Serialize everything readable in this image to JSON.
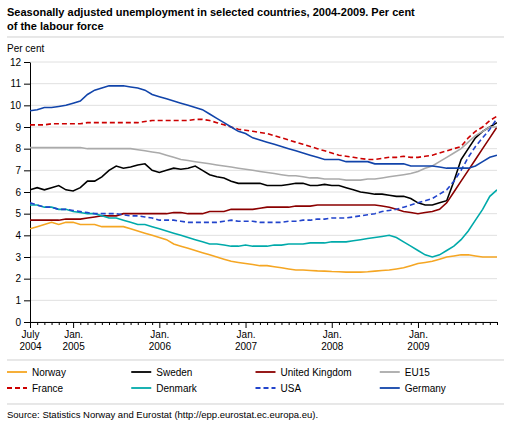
{
  "chart_data": {
    "type": "line",
    "title": "Seasonally adjusted unemployment in selected countries, 2004-2009. Per cent",
    "subtitle": "of the labour force",
    "ylabel": "Per cent",
    "source": "Source: Statistics Norway and Eurostat (http://epp.eurostat.ec.europa.eu).",
    "categories": [
      "July\n2004",
      null,
      null,
      null,
      null,
      null,
      "Jan.\n2005",
      null,
      null,
      null,
      null,
      null,
      null,
      null,
      null,
      null,
      null,
      null,
      "Jan.\n2006",
      null,
      null,
      null,
      null,
      null,
      null,
      null,
      null,
      null,
      null,
      null,
      "Jan.\n2007",
      null,
      null,
      null,
      null,
      null,
      null,
      null,
      null,
      null,
      null,
      null,
      "Jan.\n2008",
      null,
      null,
      null,
      null,
      null,
      null,
      null,
      null,
      null,
      null,
      null,
      "Jan.\n2009",
      null,
      null,
      null,
      null,
      null,
      null,
      null,
      null,
      null,
      null,
      null
    ],
    "ylim": [
      0,
      12
    ],
    "yticks": [
      0,
      1,
      2,
      3,
      4,
      5,
      6,
      7,
      8,
      9,
      10,
      11,
      12
    ],
    "grid": true,
    "legend": "bottom",
    "series": [
      {
        "name": "Norway",
        "color": "#f5a623",
        "line_style": "solid",
        "values": [
          4.3,
          4.4,
          4.5,
          4.6,
          4.5,
          4.6,
          4.6,
          4.5,
          4.5,
          4.5,
          4.4,
          4.4,
          4.4,
          4.4,
          4.3,
          4.2,
          4.1,
          4.0,
          3.9,
          3.8,
          3.6,
          3.5,
          3.4,
          3.3,
          3.2,
          3.1,
          3.0,
          2.9,
          2.8,
          2.75,
          2.7,
          2.65,
          2.6,
          2.6,
          2.55,
          2.5,
          2.45,
          2.4,
          2.4,
          2.38,
          2.36,
          2.35,
          2.33,
          2.32,
          2.3,
          2.3,
          2.3,
          2.32,
          2.35,
          2.38,
          2.4,
          2.45,
          2.5,
          2.6,
          2.7,
          2.75,
          2.8,
          2.9,
          3.0,
          3.05,
          3.1,
          3.1,
          3.05,
          3.0,
          3.0,
          3.0
        ]
      },
      {
        "name": "Sweden",
        "color": "#000000",
        "line_style": "solid",
        "values": [
          6.1,
          6.2,
          6.1,
          6.2,
          6.3,
          6.1,
          6.05,
          6.2,
          6.5,
          6.5,
          6.7,
          7.0,
          7.2,
          7.1,
          7.15,
          7.25,
          7.3,
          7.0,
          6.9,
          7.0,
          7.1,
          7.05,
          7.1,
          7.2,
          7.0,
          6.8,
          6.7,
          6.65,
          6.5,
          6.4,
          6.4,
          6.4,
          6.4,
          6.3,
          6.3,
          6.3,
          6.35,
          6.4,
          6.4,
          6.3,
          6.3,
          6.35,
          6.3,
          6.3,
          6.2,
          6.1,
          6.0,
          5.95,
          5.9,
          5.9,
          5.85,
          5.8,
          5.8,
          5.7,
          5.5,
          5.4,
          5.4,
          5.5,
          5.6,
          6.5,
          7.5,
          8.0,
          8.5,
          8.8,
          9.0,
          9.2
        ]
      },
      {
        "name": "United Kingdom",
        "color": "#8b0000",
        "line_style": "solid",
        "values": [
          4.7,
          4.7,
          4.7,
          4.7,
          4.7,
          4.75,
          4.75,
          4.75,
          4.8,
          4.85,
          4.9,
          4.9,
          4.9,
          5.0,
          5.0,
          5.0,
          5.0,
          5.0,
          5.0,
          5.0,
          5.05,
          5.05,
          5.0,
          5.0,
          5.0,
          5.1,
          5.1,
          5.1,
          5.2,
          5.2,
          5.2,
          5.2,
          5.25,
          5.3,
          5.3,
          5.3,
          5.3,
          5.35,
          5.35,
          5.35,
          5.4,
          5.4,
          5.4,
          5.4,
          5.4,
          5.4,
          5.4,
          5.4,
          5.4,
          5.35,
          5.3,
          5.2,
          5.1,
          5.05,
          5.0,
          5.05,
          5.1,
          5.2,
          5.5,
          6.0,
          6.5,
          7.0,
          7.5,
          8.0,
          8.5,
          9.0
        ]
      },
      {
        "name": "EU15",
        "color": "#aaaaaa",
        "line_style": "solid",
        "values": [
          8.05,
          8.05,
          8.05,
          8.05,
          8.05,
          8.05,
          8.05,
          8.05,
          8.0,
          8.0,
          8.0,
          8.0,
          8.0,
          8.0,
          8.0,
          7.95,
          7.9,
          7.85,
          7.8,
          7.7,
          7.6,
          7.5,
          7.45,
          7.4,
          7.35,
          7.3,
          7.25,
          7.2,
          7.15,
          7.1,
          7.05,
          7.0,
          6.95,
          6.9,
          6.85,
          6.8,
          6.75,
          6.75,
          6.7,
          6.65,
          6.65,
          6.6,
          6.6,
          6.6,
          6.55,
          6.55,
          6.55,
          6.6,
          6.6,
          6.65,
          6.7,
          6.75,
          6.8,
          6.85,
          6.95,
          7.1,
          7.2,
          7.4,
          7.6,
          7.8,
          8.0,
          8.3,
          8.6,
          8.8,
          9.0,
          9.0
        ]
      },
      {
        "name": "France",
        "color": "#cc0000",
        "line_style": "dashed",
        "values": [
          9.1,
          9.1,
          9.1,
          9.15,
          9.15,
          9.15,
          9.15,
          9.15,
          9.2,
          9.2,
          9.2,
          9.2,
          9.2,
          9.2,
          9.2,
          9.2,
          9.25,
          9.3,
          9.3,
          9.3,
          9.3,
          9.3,
          9.3,
          9.35,
          9.35,
          9.3,
          9.2,
          9.1,
          9.0,
          8.9,
          8.85,
          8.8,
          8.75,
          8.7,
          8.6,
          8.5,
          8.4,
          8.3,
          8.2,
          8.1,
          8.0,
          7.9,
          7.8,
          7.7,
          7.65,
          7.6,
          7.55,
          7.5,
          7.5,
          7.55,
          7.6,
          7.6,
          7.65,
          7.6,
          7.6,
          7.65,
          7.7,
          7.8,
          7.9,
          8.0,
          8.1,
          8.5,
          8.8,
          9.0,
          9.3,
          9.5
        ]
      },
      {
        "name": "Denmark",
        "color": "#00aaaa",
        "line_style": "solid",
        "values": [
          5.4,
          5.4,
          5.3,
          5.3,
          5.2,
          5.2,
          5.1,
          5.05,
          5.0,
          5.0,
          4.9,
          4.8,
          4.8,
          4.7,
          4.6,
          4.5,
          4.5,
          4.4,
          4.3,
          4.2,
          4.1,
          4.0,
          3.9,
          3.8,
          3.7,
          3.6,
          3.6,
          3.55,
          3.5,
          3.5,
          3.55,
          3.5,
          3.5,
          3.5,
          3.55,
          3.55,
          3.6,
          3.6,
          3.6,
          3.65,
          3.65,
          3.65,
          3.7,
          3.7,
          3.7,
          3.75,
          3.8,
          3.85,
          3.9,
          3.95,
          4.0,
          3.9,
          3.7,
          3.5,
          3.3,
          3.1,
          3.0,
          3.1,
          3.3,
          3.5,
          3.8,
          4.2,
          4.7,
          5.2,
          5.8,
          6.1
        ]
      },
      {
        "name": "USA",
        "color": "#2244cc",
        "line_style": "dashed",
        "values": [
          5.5,
          5.4,
          5.3,
          5.3,
          5.2,
          5.2,
          5.15,
          5.1,
          5.05,
          5.0,
          5.0,
          5.0,
          5.0,
          4.95,
          4.9,
          4.9,
          4.85,
          4.8,
          4.7,
          4.7,
          4.7,
          4.65,
          4.6,
          4.6,
          4.6,
          4.6,
          4.6,
          4.65,
          4.7,
          4.65,
          4.65,
          4.65,
          4.6,
          4.6,
          4.6,
          4.6,
          4.65,
          4.65,
          4.7,
          4.7,
          4.75,
          4.75,
          4.8,
          4.8,
          4.8,
          4.85,
          4.9,
          4.95,
          5.0,
          5.1,
          5.15,
          5.2,
          5.3,
          5.4,
          5.5,
          5.6,
          5.7,
          5.9,
          6.1,
          6.5,
          7.0,
          7.6,
          8.1,
          8.5,
          8.9,
          9.4
        ]
      },
      {
        "name": "Germany",
        "color": "#1144aa",
        "line_style": "solid",
        "values": [
          9.75,
          9.8,
          9.9,
          9.9,
          9.95,
          10.0,
          10.1,
          10.2,
          10.5,
          10.7,
          10.8,
          10.9,
          10.9,
          10.9,
          10.85,
          10.8,
          10.7,
          10.5,
          10.4,
          10.3,
          10.2,
          10.1,
          10.0,
          9.9,
          9.8,
          9.6,
          9.4,
          9.2,
          9.0,
          8.8,
          8.7,
          8.5,
          8.4,
          8.3,
          8.2,
          8.1,
          8.0,
          7.9,
          7.8,
          7.7,
          7.6,
          7.5,
          7.5,
          7.5,
          7.4,
          7.4,
          7.4,
          7.4,
          7.3,
          7.3,
          7.3,
          7.3,
          7.3,
          7.2,
          7.2,
          7.2,
          7.2,
          7.15,
          7.1,
          7.1,
          7.1,
          7.1,
          7.2,
          7.4,
          7.6,
          7.7
        ]
      }
    ]
  }
}
